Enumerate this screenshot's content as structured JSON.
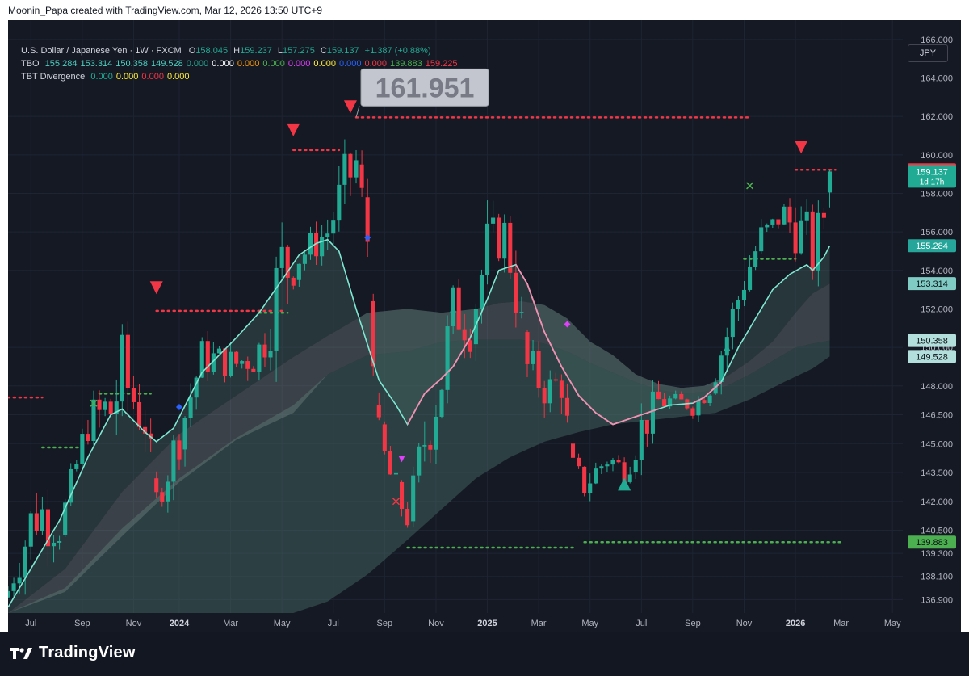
{
  "header": {
    "created_by": "Moonin_Papa created with TradingView.com, Mar 12, 2026 13:50 UTC+9",
    "symbol": "U.S. Dollar / Japanese Yen · 1W · FXCM",
    "ohlc": {
      "o_label": "O",
      "o": "158.045",
      "h_label": "H",
      "h": "159.237",
      "l_label": "L",
      "l": "157.275",
      "c_label": "C",
      "c": "159.137",
      "change": "+1.387 (+0.88%)"
    },
    "tbo": {
      "label": "TBO",
      "values": [
        {
          "text": "155.284",
          "color": "#4dd0c1"
        },
        {
          "text": "153.314",
          "color": "#4dd0c1"
        },
        {
          "text": "150.358",
          "color": "#4dd0c1"
        },
        {
          "text": "149.528",
          "color": "#4dd0c1"
        },
        {
          "text": "0.000",
          "color": "#22ab94"
        },
        {
          "text": "0.000",
          "color": "#ffffff"
        },
        {
          "text": "0.000",
          "color": "#ff9800"
        },
        {
          "text": "0.000",
          "color": "#4caf50"
        },
        {
          "text": "0.000",
          "color": "#e040fb"
        },
        {
          "text": "0.000",
          "color": "#ffeb3b"
        },
        {
          "text": "0.000",
          "color": "#2962ff"
        },
        {
          "text": "0.000",
          "color": "#f23645"
        },
        {
          "text": "139.883",
          "color": "#4caf50"
        },
        {
          "text": "159.225",
          "color": "#f23645"
        }
      ]
    },
    "tbt": {
      "label": "TBT Divergence",
      "values": [
        {
          "text": "0.000",
          "color": "#22ab94"
        },
        {
          "text": "0.000",
          "color": "#ffeb3b"
        },
        {
          "text": "0.000",
          "color": "#f23645"
        },
        {
          "text": "0.000",
          "color": "#ffeb3b"
        }
      ]
    },
    "currency": "JPY"
  },
  "footer": {
    "logo_text": "TradingView"
  },
  "colors": {
    "background": "#151924",
    "grid": "#1f2433",
    "up": "#22ab94",
    "down": "#f23645",
    "tbo_fast_line": "#7ee8d2",
    "tbo_pink": "#f48fb1",
    "band_fill": "#4a6e68",
    "support_dots": "#4caf50",
    "resistance_dots": "#f23645",
    "axis_text": "#b2b5be"
  },
  "chart_data": {
    "type": "candlestick",
    "title": "U.S. Dollar / Japanese Yen · 1W · FXCM",
    "currency": "JPY",
    "ylim": [
      136.2,
      167.0
    ],
    "y_ticks": [
      "166.000",
      "164.000",
      "162.000",
      "160.000",
      "158.000",
      "156.000",
      "154.000",
      "152.000",
      "150.000",
      "148.000",
      "146.500",
      "145.000",
      "143.500",
      "142.000",
      "140.500",
      "139.300",
      "138.100",
      "136.900"
    ],
    "x_ticks": [
      "Jul",
      "Sep",
      "Nov",
      "2024",
      "Mar",
      "May",
      "Jul",
      "Sep",
      "Nov",
      "2025",
      "Mar",
      "May",
      "Jul",
      "Sep",
      "Nov",
      "2026",
      "Mar",
      "May"
    ],
    "x_tick_bold": [
      "2024",
      "2025",
      "2026"
    ],
    "x_tick_bars": [
      4,
      13,
      22,
      30,
      39,
      48,
      57,
      66,
      75,
      84,
      93,
      102,
      111,
      120,
      129,
      138,
      146,
      155
    ],
    "bar_domain": [
      0,
      167
    ],
    "price_labels": [
      {
        "text": "159.225",
        "value": 159.225,
        "bg": "#f23645",
        "fg": "#ffffff"
      },
      {
        "text": "159.137",
        "value": 159.137,
        "bg": "#22ab94",
        "fg": "#ffffff",
        "sub": "1d 17h"
      },
      {
        "text": "155.284",
        "value": 155.284,
        "bg": "#26a69a",
        "fg": "#ffffff"
      },
      {
        "text": "153.314",
        "value": 153.314,
        "bg": "#80cbc4",
        "fg": "#0d1117"
      },
      {
        "text": "150.358",
        "value": 150.358,
        "bg": "#b2dfdb",
        "fg": "#0d1117"
      },
      {
        "text": "149.528",
        "value": 149.528,
        "bg": "#b2dfdb",
        "fg": "#0d1117"
      },
      {
        "text": "139.883",
        "value": 139.883,
        "bg": "#4caf50",
        "fg": "#0d1117"
      }
    ],
    "high_callout": {
      "text": "161.951",
      "value": 161.951,
      "bar": 61
    },
    "anchors": [
      [
        0,
        138.2,
        136.5
      ],
      [
        5,
        144.8,
        138.5
      ],
      [
        9,
        141.8,
        139.2
      ],
      [
        14,
        147.6,
        144.5
      ],
      [
        18,
        150.0,
        143.5
      ],
      [
        20,
        151.9,
        145.0
      ],
      [
        24,
        148.5,
        144.0
      ],
      [
        26,
        143.2,
        141.0
      ],
      [
        29,
        146.5,
        142.5
      ],
      [
        34,
        151.0,
        148.0
      ],
      [
        40,
        150.3,
        148.0
      ],
      [
        44,
        151.8,
        147.8
      ],
      [
        48,
        158.0,
        150.0
      ],
      [
        51,
        155.8,
        153.5
      ],
      [
        56,
        157.5,
        154.5
      ],
      [
        59,
        160.8,
        156.0
      ],
      [
        61,
        161.2,
        158.0
      ],
      [
        63,
        157.8,
        153.5
      ],
      [
        65,
        147.0,
        143.0
      ],
      [
        68,
        144.0,
        141.0
      ],
      [
        70,
        142.0,
        140.2
      ],
      [
        73,
        148.0,
        142.5
      ],
      [
        76,
        151.5,
        145.5
      ],
      [
        78,
        154.0,
        150.0
      ],
      [
        81,
        153.5,
        149.0
      ],
      [
        84,
        157.6,
        152.5
      ],
      [
        87,
        157.5,
        154.5
      ],
      [
        89,
        155.5,
        150.5
      ],
      [
        91,
        150.8,
        147.0
      ],
      [
        95,
        149.5,
        146.0
      ],
      [
        97,
        150.0,
        146.5
      ],
      [
        99,
        145.0,
        142.0
      ],
      [
        101,
        143.8,
        141.8
      ],
      [
        105,
        145.5,
        143.0
      ],
      [
        108,
        144.6,
        142.5
      ],
      [
        111,
        147.6,
        144.0
      ],
      [
        114,
        148.4,
        146.0
      ],
      [
        118,
        147.6,
        146.8
      ],
      [
        120,
        147.5,
        146.2
      ],
      [
        123,
        149.0,
        147.0
      ],
      [
        126,
        152.5,
        148.8
      ],
      [
        129,
        155.0,
        152.0
      ],
      [
        132,
        157.0,
        154.5
      ],
      [
        134,
        157.2,
        155.5
      ],
      [
        136,
        158.0,
        156.0
      ],
      [
        137,
        158.5,
        154.5
      ],
      [
        139,
        158.0,
        154.0
      ],
      [
        140,
        157.6,
        154.5
      ],
      [
        141,
        157.2,
        152.5
      ],
      [
        142,
        157.8,
        154.0
      ],
      [
        143,
        158.3,
        155.5
      ],
      [
        144,
        159.237,
        157.275
      ]
    ],
    "tbo_fast": [
      [
        0,
        136.5
      ],
      [
        5,
        139.0
      ],
      [
        9,
        141.0
      ],
      [
        14,
        144.3
      ],
      [
        18,
        146.5
      ],
      [
        20,
        146.8
      ],
      [
        24,
        145.6
      ],
      [
        26,
        145.1
      ],
      [
        29,
        145.8
      ],
      [
        34,
        148.7
      ],
      [
        40,
        150.5
      ],
      [
        44,
        151.8
      ],
      [
        48,
        153.5
      ],
      [
        51,
        154.8
      ],
      [
        54,
        155.4
      ],
      [
        56,
        155.6
      ],
      [
        58,
        155.0
      ],
      [
        61,
        152.0
      ],
      [
        65,
        148.3
      ],
      [
        68,
        147.0
      ],
      [
        70,
        146.0
      ],
      [
        73,
        147.6
      ],
      [
        76,
        148.4
      ],
      [
        78,
        149.0
      ],
      [
        81,
        150.5
      ],
      [
        84,
        152.5
      ],
      [
        86,
        154.0
      ],
      [
        89,
        154.3
      ],
      [
        91,
        153.3
      ],
      [
        94,
        150.8
      ],
      [
        97,
        149.0
      ],
      [
        100,
        147.5
      ],
      [
        103,
        146.6
      ],
      [
        106,
        146.0
      ],
      [
        109,
        146.3
      ],
      [
        112,
        146.6
      ],
      [
        116,
        147.0
      ],
      [
        120,
        147.1
      ],
      [
        122,
        147.4
      ],
      [
        125,
        148.2
      ],
      [
        128,
        150.0
      ],
      [
        131,
        151.5
      ],
      [
        134,
        153.0
      ],
      [
        137,
        153.8
      ],
      [
        140,
        154.3
      ],
      [
        141,
        154.0
      ],
      [
        143,
        154.7
      ],
      [
        144,
        155.284
      ]
    ],
    "tbo_pink_ranges": [
      [
        70,
        81
      ],
      [
        89,
        114
      ],
      [
        120,
        125
      ]
    ],
    "tbo_band1_upper": [
      [
        0,
        136.2
      ],
      [
        10,
        138.5
      ],
      [
        20,
        142.5
      ],
      [
        30,
        145.5
      ],
      [
        40,
        147.5
      ],
      [
        50,
        149.5
      ],
      [
        56,
        150.6
      ],
      [
        63,
        151.8
      ],
      [
        70,
        152.0
      ],
      [
        76,
        151.8
      ],
      [
        82,
        152.0
      ],
      [
        86,
        152.3
      ],
      [
        90,
        152.4
      ],
      [
        94,
        152.2
      ],
      [
        98,
        151.5
      ],
      [
        102,
        150.3
      ],
      [
        106,
        149.6
      ],
      [
        110,
        148.6
      ],
      [
        114,
        148.1
      ],
      [
        118,
        147.9
      ],
      [
        122,
        148.0
      ],
      [
        126,
        148.5
      ],
      [
        130,
        149.3
      ],
      [
        134,
        150.3
      ],
      [
        138,
        151.8
      ],
      [
        141,
        152.8
      ],
      [
        144,
        153.314
      ]
    ],
    "tbo_band1_lower": [
      [
        0,
        136.2
      ],
      [
        10,
        137.3
      ],
      [
        20,
        140.2
      ],
      [
        30,
        143.0
      ],
      [
        40,
        145.2
      ],
      [
        50,
        146.6
      ],
      [
        56,
        148.6
      ],
      [
        63,
        149.6
      ],
      [
        70,
        149.8
      ],
      [
        76,
        150.3
      ],
      [
        82,
        150.4
      ],
      [
        86,
        150.4
      ],
      [
        90,
        150.4
      ],
      [
        94,
        150.2
      ],
      [
        98,
        149.8
      ],
      [
        102,
        149.2
      ],
      [
        106,
        148.7
      ],
      [
        110,
        148.2
      ],
      [
        114,
        147.8
      ],
      [
        118,
        147.6
      ],
      [
        122,
        147.7
      ],
      [
        126,
        148.0
      ],
      [
        130,
        148.6
      ],
      [
        134,
        149.3
      ],
      [
        138,
        150.0
      ],
      [
        141,
        150.2
      ],
      [
        144,
        150.358
      ]
    ],
    "tbo_band2_upper": [
      [
        0,
        136.2
      ],
      [
        10,
        137.5
      ],
      [
        20,
        140.6
      ],
      [
        30,
        143.2
      ],
      [
        40,
        145.3
      ],
      [
        50,
        147.0
      ],
      [
        56,
        148.6
      ],
      [
        63,
        149.6
      ],
      [
        70,
        149.8
      ],
      [
        76,
        150.3
      ],
      [
        82,
        150.4
      ],
      [
        86,
        150.4
      ],
      [
        90,
        150.4
      ],
      [
        94,
        150.2
      ],
      [
        98,
        149.8
      ],
      [
        102,
        149.2
      ],
      [
        106,
        148.7
      ],
      [
        110,
        148.2
      ],
      [
        114,
        147.8
      ],
      [
        118,
        147.6
      ],
      [
        122,
        147.7
      ],
      [
        126,
        148.0
      ],
      [
        130,
        148.6
      ],
      [
        134,
        149.3
      ],
      [
        138,
        150.0
      ],
      [
        141,
        150.2
      ],
      [
        144,
        150.358
      ]
    ],
    "tbo_band2_lower": [
      [
        0,
        136.2
      ],
      [
        10,
        136.2
      ],
      [
        20,
        136.2
      ],
      [
        30,
        136.2
      ],
      [
        40,
        136.2
      ],
      [
        50,
        136.2
      ],
      [
        56,
        136.8
      ],
      [
        63,
        138.2
      ],
      [
        70,
        140.0
      ],
      [
        76,
        141.6
      ],
      [
        82,
        143.2
      ],
      [
        88,
        144.3
      ],
      [
        94,
        145.1
      ],
      [
        100,
        145.6
      ],
      [
        106,
        146.0
      ],
      [
        112,
        146.2
      ],
      [
        118,
        146.4
      ],
      [
        124,
        146.6
      ],
      [
        130,
        147.3
      ],
      [
        136,
        148.2
      ],
      [
        141,
        148.9
      ],
      [
        144,
        149.528
      ]
    ],
    "levels": [
      {
        "price": 161.951,
        "x1": 61,
        "x2": 130,
        "color": "#f23645",
        "style": "dotted"
      },
      {
        "price": 160.25,
        "x1": 50,
        "x2": 58,
        "color": "#f23645",
        "style": "dotted"
      },
      {
        "price": 151.9,
        "x1": 26,
        "x2": 48,
        "color": "#f23645",
        "style": "dotted"
      },
      {
        "price": 147.4,
        "x1": -2,
        "x2": 6,
        "color": "#f23645",
        "style": "dotted"
      },
      {
        "price": 159.225,
        "x1": 138,
        "x2": 145,
        "color": "#f23645",
        "style": "dotted"
      },
      {
        "price": 144.8,
        "x1": 6,
        "x2": 13,
        "color": "#4caf50",
        "style": "dotted"
      },
      {
        "price": 147.6,
        "x1": 16,
        "x2": 25,
        "color": "#4caf50",
        "style": "dotted"
      },
      {
        "price": 151.8,
        "x1": 44,
        "x2": 49,
        "color": "#4caf50",
        "style": "dotted"
      },
      {
        "price": 139.6,
        "x1": 70,
        "x2": 99,
        "color": "#4caf50",
        "style": "dotted"
      },
      {
        "price": 139.883,
        "x1": 101,
        "x2": 146,
        "color": "#4caf50",
        "style": "dotted"
      },
      {
        "price": 154.6,
        "x1": 129,
        "x2": 138,
        "color": "#4caf50",
        "style": "dotted"
      }
    ],
    "markers": [
      {
        "bar": 26,
        "price": 153.1,
        "shape": "triangle-down",
        "color": "#f23645",
        "size": 8
      },
      {
        "bar": 50,
        "price": 161.3,
        "shape": "triangle-down",
        "color": "#f23645",
        "size": 8
      },
      {
        "bar": 60,
        "price": 162.5,
        "shape": "triangle-down",
        "color": "#f23645",
        "size": 8
      },
      {
        "bar": 139,
        "price": 160.4,
        "shape": "triangle-down",
        "color": "#f23645",
        "size": 8
      },
      {
        "bar": 108,
        "price": 142.9,
        "shape": "triangle-up",
        "color": "#22ab94",
        "size": 8
      },
      {
        "bar": 78,
        "price": 152.0,
        "shape": "triangle-up",
        "color": "#22ab94",
        "size": 4
      },
      {
        "bar": 126,
        "price": 150.0,
        "shape": "triangle-up",
        "color": "#22ab94",
        "size": 4
      },
      {
        "bar": 69,
        "price": 144.2,
        "shape": "triangle-down",
        "color": "#e040fb",
        "size": 4
      },
      {
        "bar": 98,
        "price": 151.2,
        "shape": "diamond",
        "color": "#e040fb",
        "size": 4
      },
      {
        "bar": 63,
        "price": 155.7,
        "shape": "diamond",
        "color": "#2962ff",
        "size": 4
      },
      {
        "bar": 30,
        "price": 146.9,
        "shape": "diamond",
        "color": "#2962ff",
        "size": 4
      },
      {
        "bar": 15,
        "price": 147.1,
        "shape": "cross",
        "color": "#4caf50",
        "size": 4
      },
      {
        "bar": 130,
        "price": 158.4,
        "shape": "cross",
        "color": "#4caf50",
        "size": 4
      },
      {
        "bar": 68,
        "price": 142.0,
        "shape": "cross",
        "color": "#f23645",
        "size": 4
      }
    ]
  }
}
